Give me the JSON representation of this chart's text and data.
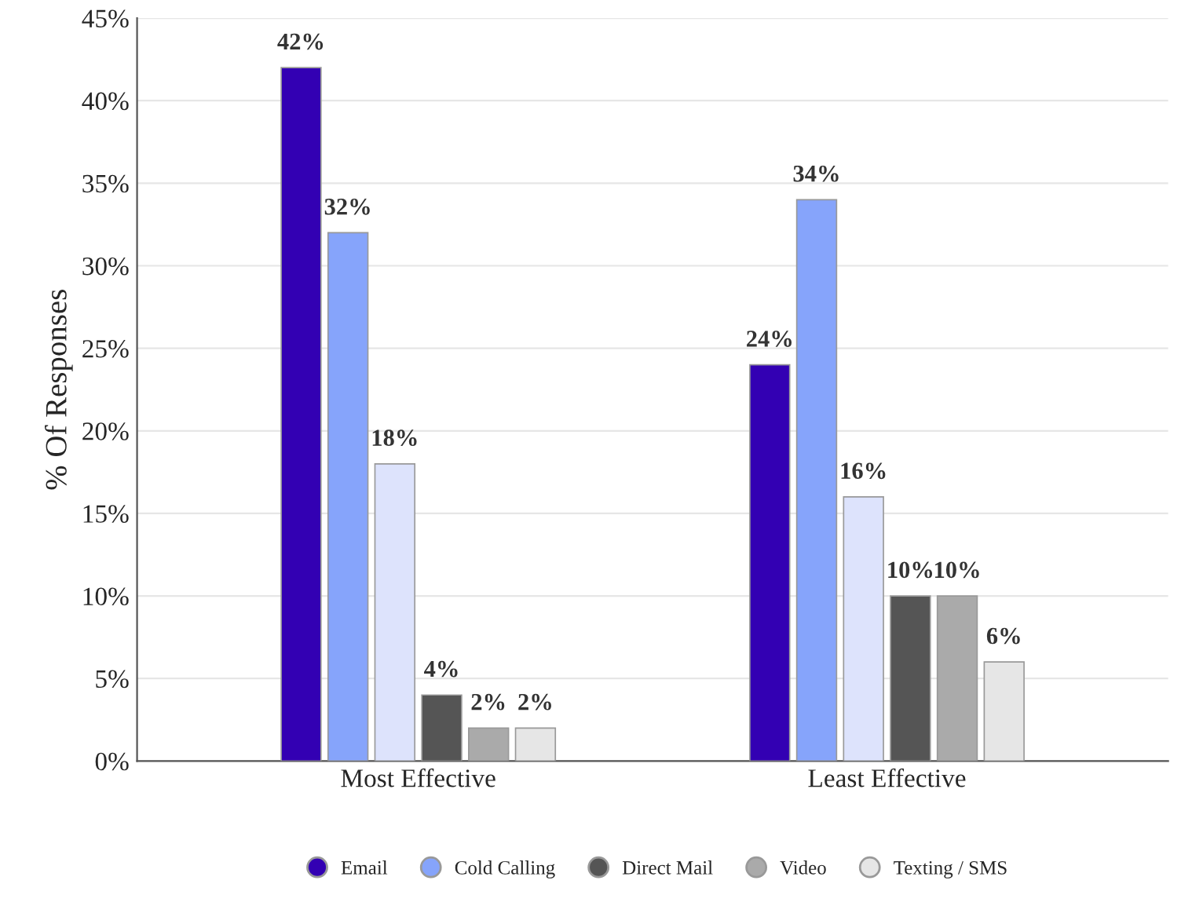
{
  "chart_data": {
    "type": "bar",
    "ylabel": "% Of Responses",
    "categories": [
      "Most Effective",
      "Least Effective"
    ],
    "series": [
      {
        "name": "Email",
        "color": "#3300b3",
        "values": [
          42,
          24
        ],
        "value_labels": [
          "42%",
          "24%"
        ]
      },
      {
        "name": "Cold Calling",
        "color": "#86a4fb",
        "values": [
          32,
          34
        ],
        "value_labels": [
          "32%",
          "34%"
        ]
      },
      {
        "color": "#dde3fc",
        "values": [
          18,
          16
        ],
        "value_labels": [
          "18%",
          "16%"
        ]
      },
      {
        "name": "Direct Mail",
        "color": "#555555",
        "values": [
          4,
          10
        ],
        "value_labels": [
          "4%",
          "10%"
        ]
      },
      {
        "name": "Video",
        "color": "#aaaaaa",
        "values": [
          2,
          10
        ],
        "value_labels": [
          "2%",
          "10%"
        ]
      },
      {
        "name": "Texting / SMS",
        "color": "#e6e6e6",
        "values": [
          2,
          6
        ],
        "value_labels": [
          "2%",
          "6%"
        ]
      }
    ],
    "ylim": [
      0,
      45
    ],
    "yticks": [
      {
        "value": 0,
        "label": "0%"
      },
      {
        "value": 5,
        "label": "5%"
      },
      {
        "value": 10,
        "label": "10%"
      },
      {
        "value": 15,
        "label": "15%"
      },
      {
        "value": 20,
        "label": "20%"
      },
      {
        "value": 25,
        "label": "25%"
      },
      {
        "value": 30,
        "label": "30%"
      },
      {
        "value": 35,
        "label": "35%"
      },
      {
        "value": 40,
        "label": "40%"
      },
      {
        "value": 45,
        "label": "45%"
      }
    ],
    "grid": "y",
    "legend": "bottom",
    "marker": "circle"
  }
}
